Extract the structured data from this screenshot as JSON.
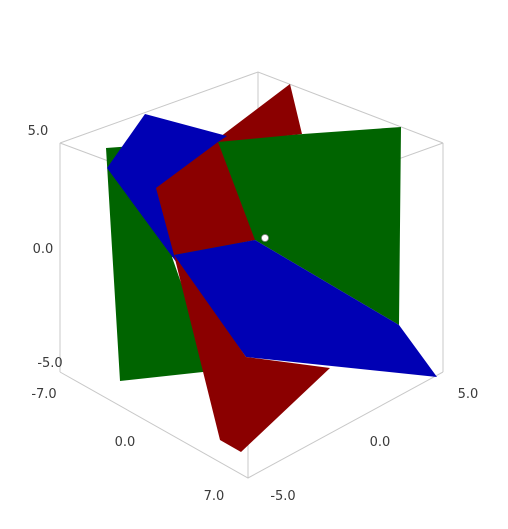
{
  "plot": {
    "type": "3d-surface-plot",
    "axes": {
      "z_ticks": [
        "5.0",
        "0.0",
        "-5.0"
      ],
      "x_ticks": [
        "-7.0",
        "0.0",
        "7.0"
      ],
      "y_ticks": [
        "-5.0",
        "0.0",
        "5.0"
      ]
    },
    "planes": [
      {
        "name": "green-plane",
        "color": "#006400"
      },
      {
        "name": "red-plane",
        "color": "#8b0000"
      },
      {
        "name": "blue-plane",
        "color": "#0000b4"
      }
    ],
    "origin_marker_color": "#ffffff"
  }
}
